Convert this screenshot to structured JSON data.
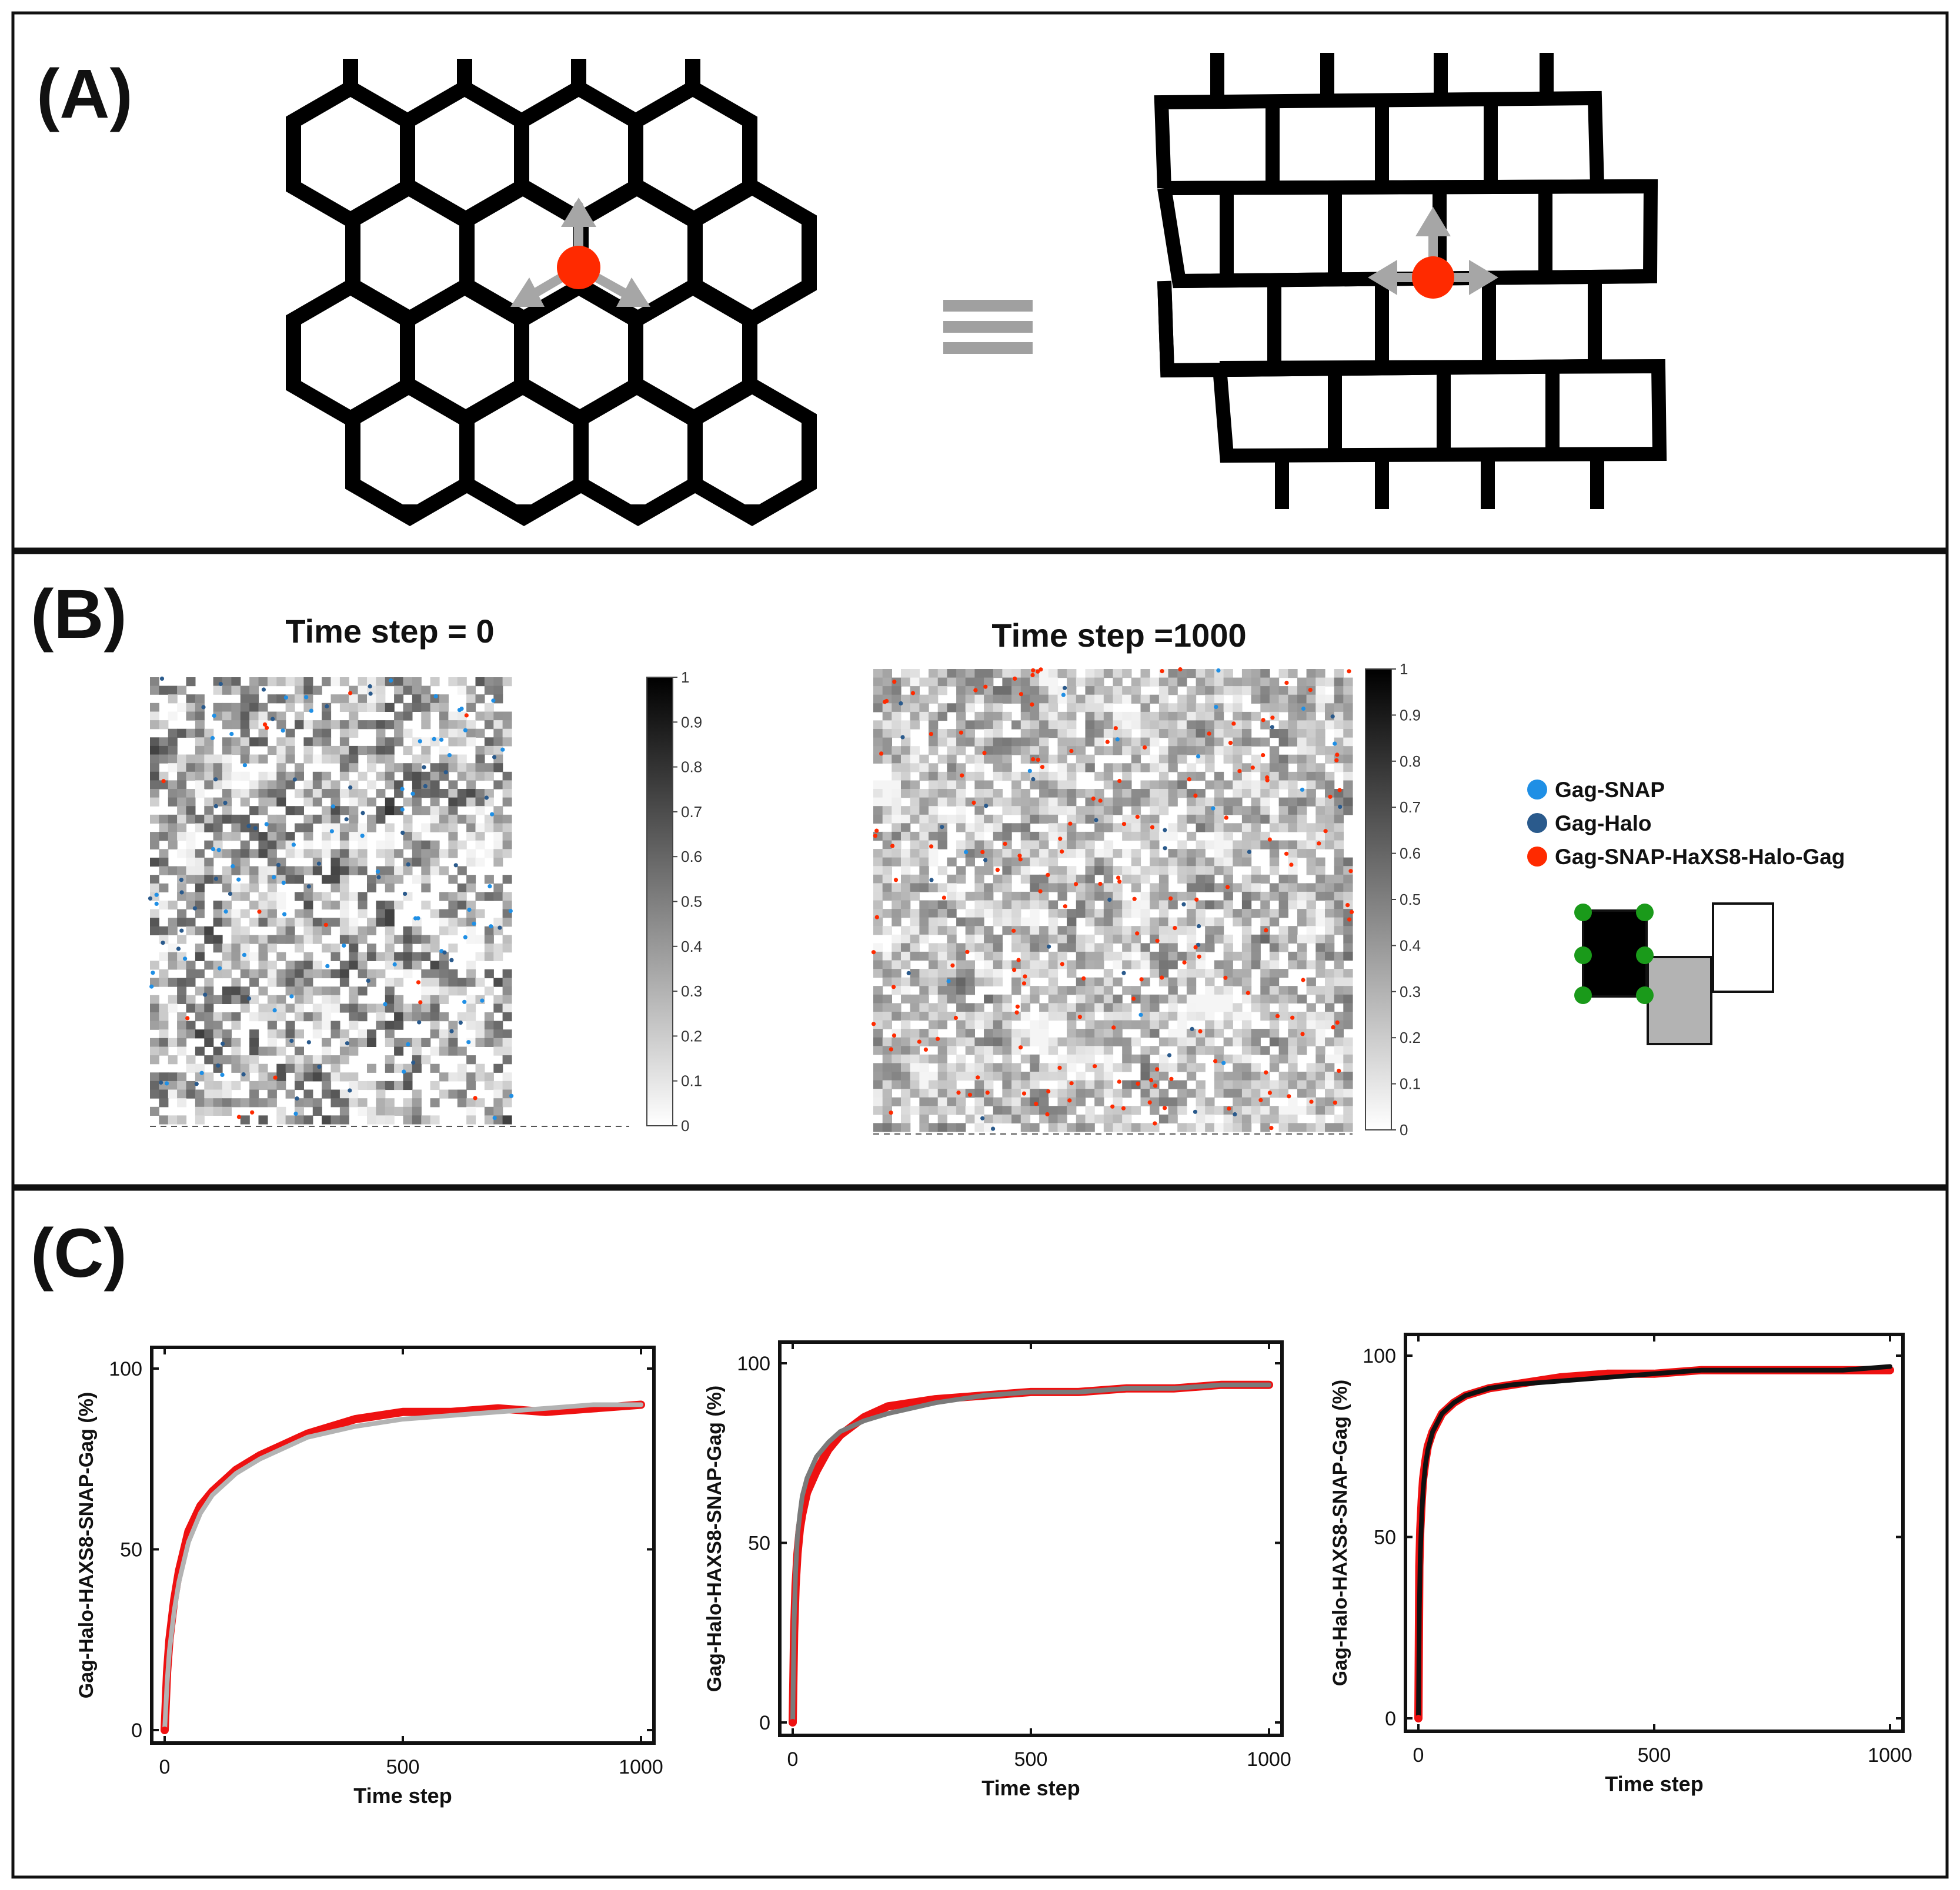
{
  "panel_a": {
    "label": "(A)",
    "colors": {
      "lattice": "#000000",
      "arrow": "#a6a6a6",
      "dot": "#ff2a00",
      "equal": "#a0a0a0"
    }
  },
  "panel_b": {
    "label": "(B)",
    "left_title": "Time step = 0",
    "right_title": "Time step =1000",
    "colorbar_ticks": [
      "1",
      "0.9",
      "0.8",
      "0.7",
      "0.6",
      "0.5",
      "0.4",
      "0.3",
      "0.2",
      "0.1",
      "0"
    ],
    "legend": [
      {
        "label": "Gag-SNAP",
        "color": "#1f8fe5"
      },
      {
        "label": "Gag-Halo",
        "color": "#2a5a8c"
      },
      {
        "label": "Gag-SNAP-HaXS8-Halo-Gag",
        "color": "#ff2a00"
      }
    ],
    "block_colors": {
      "black": "#000000",
      "gray": "#b3b3b3",
      "white": "#ffffff",
      "dots": "#1a9a1a"
    }
  },
  "panel_c": {
    "label": "(C)",
    "chart_data": [
      {
        "type": "line",
        "xlabel": "Time step",
        "ylabel": "Gag-Halo-HAXS8-SNAP-Gag (%)",
        "xlim": [
          0,
          1000
        ],
        "ylim": [
          0,
          100
        ],
        "xticks": [
          "0",
          "500",
          "1000"
        ],
        "yticks": [
          "0",
          "50",
          "100"
        ],
        "series": [
          {
            "color": "#ee1111",
            "x": [
              0,
              5,
              10,
              20,
              30,
              50,
              75,
              100,
              150,
              200,
              250,
              300,
              400,
              500,
              600,
              700,
              800,
              900,
              1000
            ],
            "y": [
              0,
              16,
              25,
              36,
              44,
              55,
              62,
              66,
              72,
              76,
              79,
              82,
              86,
              88,
              88,
              89,
              88,
              89,
              90
            ]
          },
          {
            "color": "#b3b3b3",
            "x": [
              0,
              5,
              10,
              20,
              30,
              50,
              75,
              100,
              150,
              200,
              250,
              300,
              400,
              500,
              600,
              700,
              800,
              900,
              1000
            ],
            "y": [
              0,
              13,
              22,
              33,
              41,
              52,
              60,
              65,
              71,
              75,
              78,
              81,
              84,
              86,
              87,
              88,
              89,
              90,
              90
            ]
          }
        ]
      },
      {
        "type": "line",
        "xlabel": "Time step",
        "ylabel": "Gag-Halo-HAXS8-SNAP-Gag (%)",
        "xlim": [
          0,
          1000
        ],
        "ylim": [
          0,
          100
        ],
        "xticks": [
          "0",
          "500",
          "1000"
        ],
        "yticks": [
          "0",
          "50",
          "100"
        ],
        "series": [
          {
            "color": "#ee1111",
            "x": [
              0,
              3,
              6,
              10,
              15,
              20,
              30,
              50,
              75,
              100,
              150,
              200,
              300,
              400,
              500,
              600,
              700,
              800,
              900,
              1000
            ],
            "y": [
              0,
              25,
              38,
              47,
              54,
              58,
              64,
              70,
              76,
              80,
              85,
              88,
              90,
              91,
              92,
              92,
              93,
              93,
              94,
              94
            ]
          },
          {
            "color": "#7a7a7a",
            "x": [
              0,
              3,
              6,
              10,
              15,
              20,
              30,
              50,
              75,
              100,
              150,
              200,
              300,
              400,
              500,
              600,
              700,
              800,
              900,
              1000
            ],
            "y": [
              0,
              28,
              42,
              52,
              58,
              63,
              68,
              74,
              78,
              81,
              84,
              86,
              89,
              91,
              92,
              92,
              93,
              93,
              94,
              94
            ]
          }
        ]
      },
      {
        "type": "line",
        "xlabel": "Time step",
        "ylabel": "Gag-Halo-HAXS8-SNAP-Gag (%)",
        "xlim": [
          0,
          1000
        ],
        "ylim": [
          0,
          100
        ],
        "xticks": [
          "0",
          "500",
          "1000"
        ],
        "yticks": [
          "0",
          "50",
          "100"
        ],
        "series": [
          {
            "color": "#ee1111",
            "x": [
              0,
              2,
              4,
              7,
              10,
              15,
              20,
              30,
              50,
              75,
              100,
              150,
              200,
              300,
              400,
              500,
              600,
              700,
              800,
              900,
              1000
            ],
            "y": [
              0,
              42,
              52,
              60,
              66,
              71,
              75,
              79,
              84,
              87,
              89,
              91,
              92,
              94,
              95,
              95,
              96,
              96,
              96,
              96,
              96
            ]
          },
          {
            "color": "#111111",
            "x": [
              0,
              2,
              4,
              7,
              10,
              15,
              20,
              30,
              50,
              75,
              100,
              150,
              200,
              300,
              400,
              500,
              600,
              700,
              800,
              900,
              1000
            ],
            "y": [
              0,
              30,
              45,
              56,
              63,
              70,
              74,
              79,
              84,
              87,
              89,
              91,
              92,
              93,
              94,
              95,
              96,
              96,
              96,
              96,
              97
            ]
          }
        ]
      }
    ]
  }
}
